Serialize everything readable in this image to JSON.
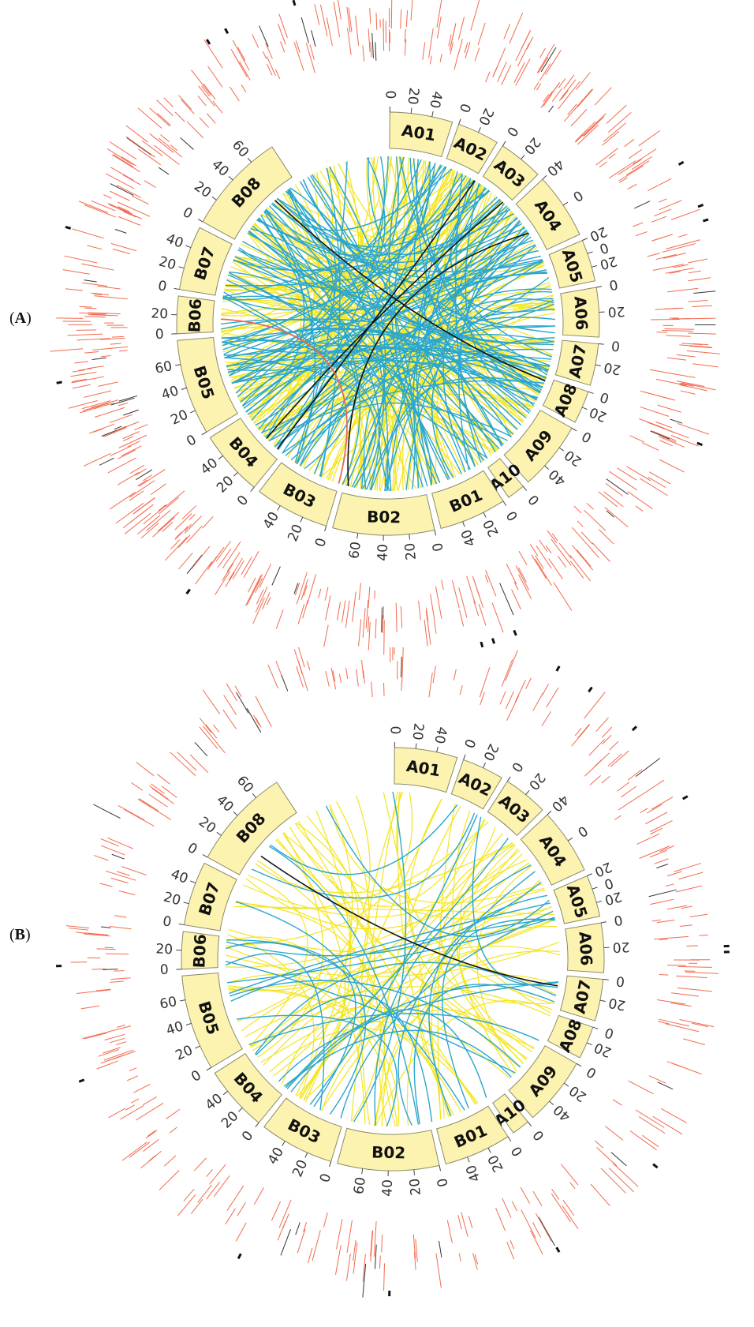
{
  "panels": [
    {
      "label_open": "(",
      "label_letter": "A",
      "label_close": ")",
      "link_density": "high"
    },
    {
      "label_open": "(",
      "label_letter": "B",
      "label_close": ")",
      "link_density": "low"
    }
  ],
  "chromosomes": [
    {
      "name": "A01",
      "ticks": [
        "0",
        "20",
        "40"
      ]
    },
    {
      "name": "A02",
      "ticks": [
        "0",
        "20"
      ]
    },
    {
      "name": "A03",
      "ticks": [
        "0",
        "20"
      ]
    },
    {
      "name": "A04",
      "ticks": [
        "40",
        "0"
      ]
    },
    {
      "name": "A05",
      "ticks": [
        "20",
        "0",
        "20"
      ]
    },
    {
      "name": "A06",
      "ticks": [
        "0",
        "20"
      ]
    },
    {
      "name": "A07",
      "ticks": [
        "0",
        "20"
      ]
    },
    {
      "name": "A08",
      "ticks": [
        "0",
        "20"
      ]
    },
    {
      "name": "A09",
      "ticks": [
        "0",
        "20",
        "40"
      ]
    },
    {
      "name": "A10",
      "ticks": [
        "0"
      ]
    },
    {
      "name": "B01",
      "ticks": [
        "0",
        "20",
        "40"
      ]
    },
    {
      "name": "B02",
      "ticks": [
        "0",
        "20",
        "40",
        "60"
      ]
    },
    {
      "name": "B03",
      "ticks": [
        "0",
        "20",
        "40"
      ]
    },
    {
      "name": "B04",
      "ticks": [
        "0",
        "20",
        "40"
      ]
    },
    {
      "name": "B05",
      "ticks": [
        "0",
        "20",
        "40",
        "60"
      ]
    },
    {
      "name": "B06",
      "ticks": [
        "0",
        "20"
      ]
    },
    {
      "name": "B07",
      "ticks": [
        "0",
        "20",
        "40"
      ]
    },
    {
      "name": "B08",
      "ticks": [
        "0",
        "20",
        "40",
        "60"
      ]
    }
  ],
  "colors": {
    "chromosome_fill": "#fdf3b0",
    "chromosome_stroke": "#8a8a6a",
    "link_yellow": "#f3e51f",
    "link_blue": "#2aa6cf",
    "link_black": "#111111",
    "link_red": "#e06a5a",
    "outer_track": "#f26b50",
    "outer_track_dark": "#333333"
  }
}
